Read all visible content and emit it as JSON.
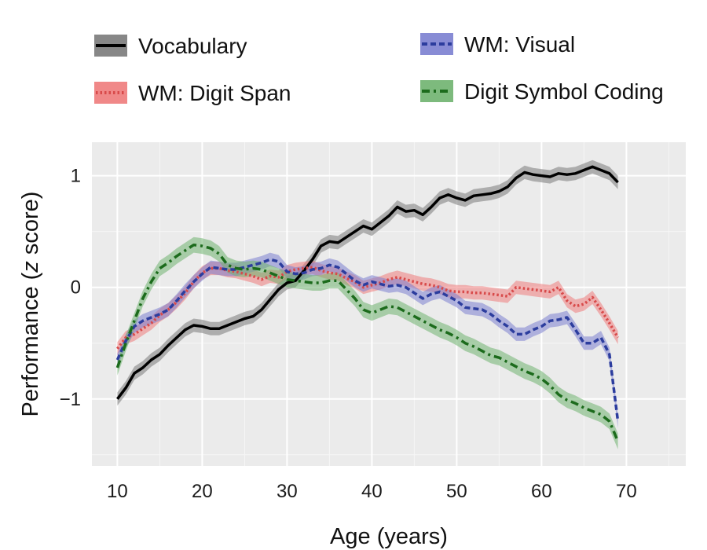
{
  "chart_data": {
    "type": "line",
    "title": "",
    "xlabel": "Age (years)",
    "ylabel_prefix": "Performance (",
    "ylabel_italic": "z",
    "ylabel_suffix": " score)",
    "xlim": [
      7,
      77
    ],
    "ylim": [
      -1.6,
      1.3
    ],
    "xticks": [
      10,
      20,
      30,
      40,
      50,
      60,
      70
    ],
    "yticks": [
      1,
      0,
      -1
    ],
    "ytick_labels": [
      "1",
      "0",
      "−1"
    ],
    "grid": true,
    "legend_position": "top",
    "series": [
      {
        "name": "Vocabulary",
        "color": "#000000",
        "band_color": "#7a7a7a",
        "dash": "solid",
        "band": 0.06,
        "x": [
          10,
          11,
          12,
          13,
          14,
          15,
          16,
          17,
          18,
          19,
          20,
          21,
          22,
          23,
          24,
          25,
          26,
          27,
          28,
          29,
          30,
          31,
          32,
          33,
          34,
          35,
          36,
          37,
          38,
          39,
          40,
          41,
          42,
          43,
          44,
          45,
          46,
          47,
          48,
          49,
          50,
          51,
          52,
          53,
          54,
          55,
          56,
          57,
          58,
          59,
          60,
          61,
          62,
          63,
          64,
          65,
          66,
          67,
          68,
          69
        ],
        "values": [
          -1.0,
          -0.9,
          -0.77,
          -0.72,
          -0.65,
          -0.6,
          -0.52,
          -0.45,
          -0.38,
          -0.34,
          -0.35,
          -0.37,
          -0.37,
          -0.34,
          -0.31,
          -0.28,
          -0.26,
          -0.2,
          -0.11,
          -0.02,
          0.04,
          0.06,
          0.15,
          0.25,
          0.37,
          0.41,
          0.4,
          0.45,
          0.5,
          0.55,
          0.52,
          0.58,
          0.64,
          0.72,
          0.68,
          0.69,
          0.65,
          0.72,
          0.8,
          0.83,
          0.8,
          0.78,
          0.82,
          0.83,
          0.84,
          0.86,
          0.9,
          0.98,
          1.03,
          1.01,
          1.0,
          0.99,
          1.02,
          1.01,
          1.02,
          1.05,
          1.08,
          1.05,
          1.02,
          0.94
        ]
      },
      {
        "name": "WM: Digit Span",
        "color": "#d84a4a",
        "band_color": "#ee7b7b",
        "dash": "dotted",
        "band": 0.06,
        "x": [
          10,
          11,
          12,
          13,
          14,
          15,
          16,
          17,
          18,
          19,
          20,
          21,
          22,
          23,
          24,
          25,
          26,
          27,
          28,
          29,
          30,
          31,
          32,
          33,
          34,
          35,
          36,
          37,
          38,
          39,
          40,
          41,
          42,
          43,
          44,
          45,
          46,
          47,
          48,
          49,
          50,
          51,
          52,
          53,
          54,
          55,
          56,
          57,
          58,
          59,
          60,
          61,
          62,
          63,
          64,
          65,
          66,
          67,
          68,
          69
        ],
        "values": [
          -0.55,
          -0.45,
          -0.42,
          -0.37,
          -0.32,
          -0.25,
          -0.2,
          -0.13,
          -0.05,
          0.05,
          0.13,
          0.17,
          0.17,
          0.15,
          0.14,
          0.12,
          0.1,
          0.07,
          0.1,
          0.09,
          0.14,
          0.16,
          0.17,
          0.18,
          0.15,
          0.13,
          0.12,
          0.08,
          0.05,
          0.0,
          0.02,
          0.04,
          0.07,
          0.09,
          0.07,
          0.05,
          0.03,
          0.02,
          0.0,
          -0.03,
          -0.04,
          -0.04,
          -0.05,
          -0.05,
          -0.06,
          -0.07,
          -0.08,
          0.0,
          -0.01,
          -0.02,
          -0.03,
          -0.04,
          0.0,
          -0.12,
          -0.17,
          -0.15,
          -0.09,
          -0.2,
          -0.32,
          -0.45
        ]
      },
      {
        "name": "WM: Visual",
        "color": "#2c3d9e",
        "band_color": "#7b7fd0",
        "dash": "dashed",
        "band": 0.06,
        "x": [
          10,
          11,
          12,
          13,
          14,
          15,
          16,
          17,
          18,
          19,
          20,
          21,
          22,
          23,
          24,
          25,
          26,
          27,
          28,
          29,
          30,
          31,
          32,
          33,
          34,
          35,
          36,
          37,
          38,
          39,
          40,
          41,
          42,
          43,
          44,
          45,
          46,
          47,
          48,
          49,
          50,
          51,
          52,
          53,
          54,
          55,
          56,
          57,
          58,
          59,
          60,
          61,
          62,
          63,
          64,
          65,
          66,
          67,
          68,
          69
        ],
        "values": [
          -0.65,
          -0.48,
          -0.35,
          -0.3,
          -0.27,
          -0.24,
          -0.2,
          -0.12,
          -0.03,
          0.05,
          0.12,
          0.18,
          0.17,
          0.16,
          0.16,
          0.18,
          0.2,
          0.22,
          0.25,
          0.23,
          0.14,
          0.12,
          0.13,
          0.16,
          0.17,
          0.2,
          0.18,
          0.12,
          0.06,
          0.02,
          0.05,
          0.03,
          0.01,
          0.02,
          0.0,
          -0.05,
          -0.1,
          -0.06,
          -0.04,
          -0.08,
          -0.12,
          -0.18,
          -0.19,
          -0.2,
          -0.24,
          -0.3,
          -0.35,
          -0.42,
          -0.42,
          -0.38,
          -0.35,
          -0.3,
          -0.29,
          -0.27,
          -0.38,
          -0.5,
          -0.5,
          -0.45,
          -0.6,
          -1.2
        ]
      },
      {
        "name": "Digit Symbol Coding",
        "color": "#1c6b1c",
        "band_color": "#6fb26f",
        "dash": "dashdot",
        "band": 0.07,
        "x": [
          10,
          11,
          12,
          13,
          14,
          15,
          16,
          17,
          18,
          19,
          20,
          21,
          22,
          23,
          24,
          25,
          26,
          27,
          28,
          29,
          30,
          31,
          32,
          33,
          34,
          35,
          36,
          37,
          38,
          39,
          40,
          41,
          42,
          43,
          44,
          45,
          46,
          47,
          48,
          49,
          50,
          51,
          52,
          53,
          54,
          55,
          56,
          57,
          58,
          59,
          60,
          61,
          62,
          63,
          64,
          65,
          66,
          67,
          68,
          69
        ],
        "values": [
          -0.72,
          -0.5,
          -0.3,
          -0.1,
          0.05,
          0.17,
          0.22,
          0.28,
          0.33,
          0.38,
          0.37,
          0.35,
          0.3,
          0.2,
          0.17,
          0.16,
          0.17,
          0.16,
          0.13,
          0.1,
          0.07,
          0.06,
          0.05,
          0.04,
          0.04,
          0.06,
          0.06,
          -0.02,
          -0.1,
          -0.2,
          -0.23,
          -0.2,
          -0.17,
          -0.18,
          -0.22,
          -0.26,
          -0.3,
          -0.34,
          -0.38,
          -0.41,
          -0.45,
          -0.5,
          -0.53,
          -0.57,
          -0.61,
          -0.63,
          -0.67,
          -0.71,
          -0.75,
          -0.78,
          -0.82,
          -0.88,
          -0.96,
          -1.01,
          -1.04,
          -1.08,
          -1.11,
          -1.14,
          -1.2,
          -1.38
        ]
      }
    ],
    "legend": [
      {
        "series": 0,
        "label": "Vocabulary"
      },
      {
        "series": 2,
        "label": "WM: Visual"
      },
      {
        "series": 1,
        "label": "WM: Digit Span"
      },
      {
        "series": 3,
        "label": "Digit Symbol Coding"
      }
    ]
  }
}
